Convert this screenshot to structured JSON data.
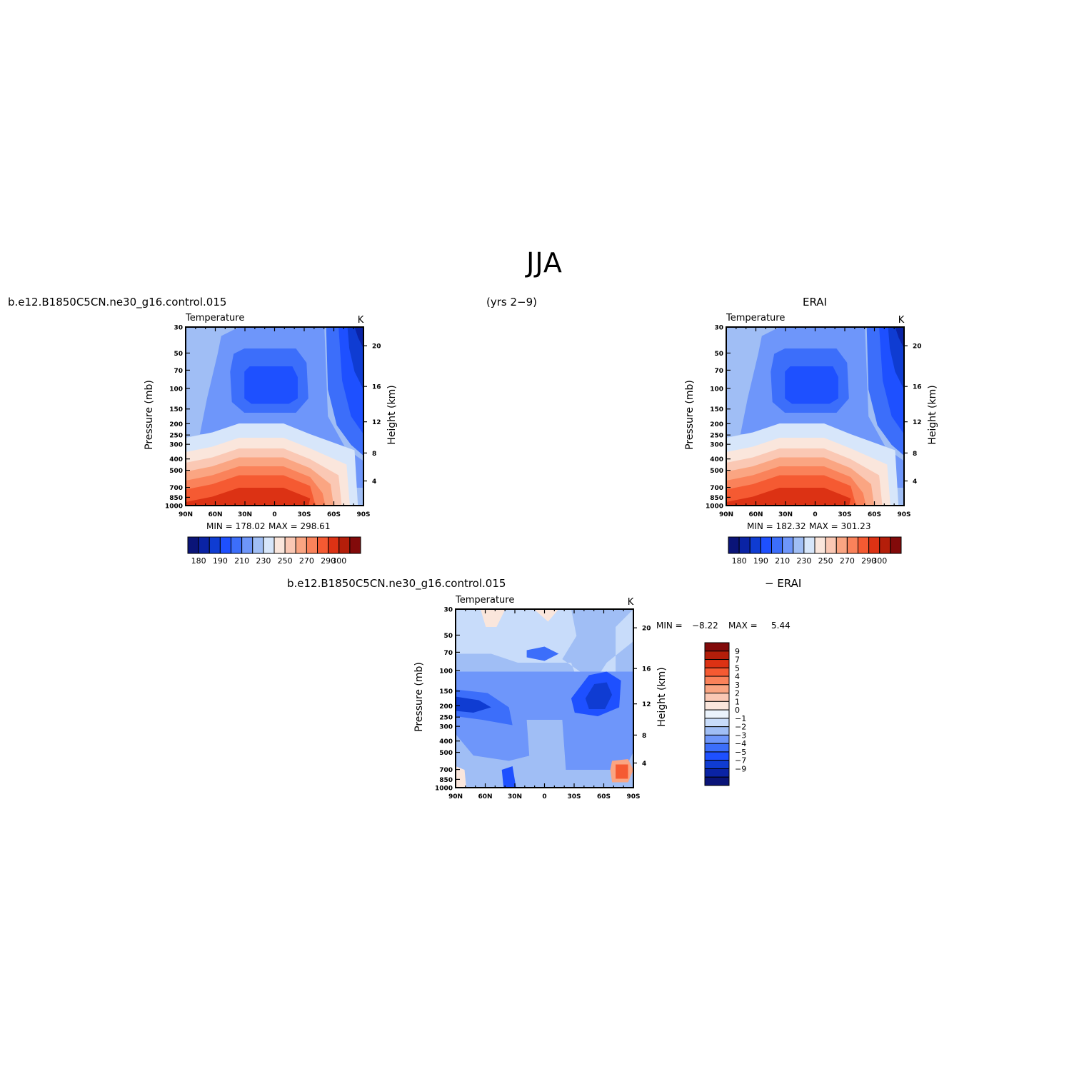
{
  "page_title": "JJA",
  "captions": {
    "left_case": "b.e12.B1850C5CN.ne30_g16.control.015",
    "years": "(yrs 2−9)",
    "right_case": "ERAI",
    "diff_case": "b.e12.B1850C5CN.ne30_g16.control.015",
    "diff_ref": "− ERAI"
  },
  "panels": [
    {
      "id": "model",
      "title": "Temperature",
      "units": "K",
      "ylabel": "Pressure (mb)",
      "y2label": "Height (km)",
      "min_label": "MIN = 178.02",
      "max_label": "MAX = 298.61"
    },
    {
      "id": "erai",
      "title": "Temperature",
      "units": "K",
      "ylabel": "Pressure (mb)",
      "y2label": "Height (km)",
      "min_label": "MIN = 182.32",
      "max_label": "MAX = 301.23"
    },
    {
      "id": "diff",
      "title": "Temperature",
      "units": "K",
      "ylabel": "Pressure (mb)",
      "y2label": "Height (km)",
      "min_label": "MIN =",
      "min_value": "−8.22",
      "max_label": "MAX =",
      "max_value": "5.44"
    }
  ],
  "chart_data": [
    {
      "type": "heatmap",
      "title": "Temperature",
      "units": "K",
      "xlabel": "",
      "ylabel": "Pressure (mb)",
      "y2label": "Height (km)",
      "x_ticks": [
        "90N",
        "60N",
        "30N",
        "0",
        "30S",
        "60S",
        "90S"
      ],
      "y_ticks": [
        30,
        50,
        70,
        100,
        150,
        200,
        250,
        300,
        400,
        500,
        700,
        850,
        1000
      ],
      "y2_ticks": [
        4,
        8,
        12,
        16,
        20
      ],
      "y_scale": "log",
      "ylim": [
        1000,
        30
      ],
      "contour_levels": [
        180,
        190,
        200,
        210,
        220,
        230,
        240,
        250,
        260,
        270,
        280,
        290,
        300
      ],
      "colorbar_labels": [
        "180",
        "190",
        "210",
        "230",
        "250",
        "270",
        "290",
        "300"
      ],
      "min": 178.02,
      "max": 298.61
    },
    {
      "type": "heatmap",
      "title": "Temperature",
      "units": "K",
      "xlabel": "",
      "ylabel": "Pressure (mb)",
      "y2label": "Height (km)",
      "x_ticks": [
        "90N",
        "60N",
        "30N",
        "0",
        "30S",
        "60S",
        "90S"
      ],
      "y_ticks": [
        30,
        50,
        70,
        100,
        150,
        200,
        250,
        300,
        400,
        500,
        700,
        850,
        1000
      ],
      "y2_ticks": [
        4,
        8,
        12,
        16,
        20
      ],
      "y_scale": "log",
      "ylim": [
        1000,
        30
      ],
      "contour_levels": [
        180,
        190,
        200,
        210,
        220,
        230,
        240,
        250,
        260,
        270,
        280,
        290,
        300
      ],
      "colorbar_labels": [
        "180",
        "190",
        "210",
        "230",
        "250",
        "270",
        "290",
        "300"
      ],
      "min": 182.32,
      "max": 301.23
    },
    {
      "type": "heatmap",
      "title": "Temperature",
      "units": "K",
      "xlabel": "",
      "ylabel": "Pressure (mb)",
      "y2label": "Height (km)",
      "x_ticks": [
        "90N",
        "60N",
        "30N",
        "0",
        "30S",
        "60S",
        "90S"
      ],
      "y_ticks": [
        30,
        50,
        70,
        100,
        150,
        200,
        250,
        300,
        400,
        500,
        700,
        850,
        1000
      ],
      "y2_ticks": [
        4,
        8,
        12,
        16,
        20
      ],
      "y_scale": "log",
      "ylim": [
        1000,
        30
      ],
      "contour_levels": [
        -9,
        -7,
        -5,
        -4,
        -3,
        -2,
        -1,
        0,
        1,
        2,
        3,
        4,
        5,
        7,
        9
      ],
      "colorbar_labels": [
        "9",
        "7",
        "5",
        "4",
        "3",
        "2",
        "1",
        "0",
        "−1",
        "−2",
        "−3",
        "−4",
        "−5",
        "−7",
        "−9"
      ],
      "min": -8.22,
      "max": 5.44
    }
  ],
  "colors": {
    "abs_palette": [
      "#0a1478",
      "#0a23a5",
      "#0f3cd2",
      "#1e50ff",
      "#3c6efa",
      "#6e96fa",
      "#a0bef5",
      "#d7e6fa",
      "#fae6dc",
      "#fac8b4",
      "#faa582",
      "#fa825a",
      "#f55a32",
      "#dc3214",
      "#b41e0a",
      "#820a0a"
    ],
    "diff_palette": [
      "#820a0a",
      "#b41e0a",
      "#dc3214",
      "#f55a32",
      "#fa825a",
      "#faa582",
      "#fac8b4",
      "#fae6dc",
      "#ebf3fc",
      "#c8dcfa",
      "#a0bef5",
      "#6e96fa",
      "#3c6efa",
      "#1e50ff",
      "#0f3cd2",
      "#0a23a5",
      "#0a1478"
    ]
  }
}
